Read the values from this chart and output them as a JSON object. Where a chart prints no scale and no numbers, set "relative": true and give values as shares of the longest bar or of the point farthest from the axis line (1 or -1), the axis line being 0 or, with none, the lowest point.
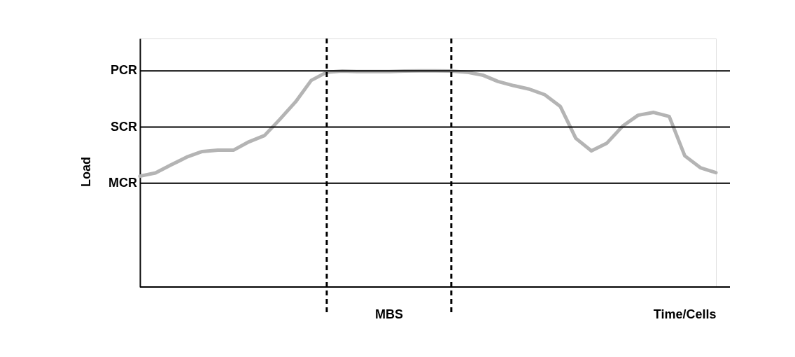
{
  "chart_data": {
    "type": "line",
    "relative": true,
    "xlabel": "Time/Cells",
    "ylabel": "Load",
    "tick_labels": false,
    "grid": false,
    "marker": "none",
    "line_style": "solid",
    "categories": [
      null,
      null,
      null,
      null,
      null,
      null,
      null,
      null,
      null,
      null,
      null,
      null,
      null,
      null,
      null,
      null,
      null,
      null,
      null,
      null,
      null,
      null,
      null,
      null,
      null,
      null,
      null,
      null,
      null,
      null,
      null,
      null,
      null,
      null,
      null,
      null,
      null,
      null
    ],
    "series": [
      {
        "color": "#b4b4b4",
        "values": [
          0.513,
          0.528,
          0.565,
          0.601,
          0.627,
          0.633,
          0.633,
          0.672,
          0.701,
          0.777,
          0.857,
          0.956,
          0.994,
          0.999,
          0.997,
          0.997,
          0.997,
          0.999,
          1.0,
          1.0,
          0.999,
          0.994,
          0.981,
          0.951,
          0.932,
          0.916,
          0.89,
          0.836,
          0.688,
          0.63,
          0.666,
          0.744,
          0.795,
          0.808,
          0.789,
          0.607,
          0.552,
          0.529
        ]
      }
    ],
    "ref_lines": [
      {
        "axis": "y",
        "value": 1.0,
        "label": "PCR",
        "color": "#000000"
      },
      {
        "axis": "y",
        "value": 0.74,
        "label": "SCR",
        "color": "#000000"
      },
      {
        "axis": "y",
        "value": 0.48,
        "label": "MCR",
        "color": "#000000"
      }
    ],
    "annotations": [
      "MBS"
    ]
  }
}
